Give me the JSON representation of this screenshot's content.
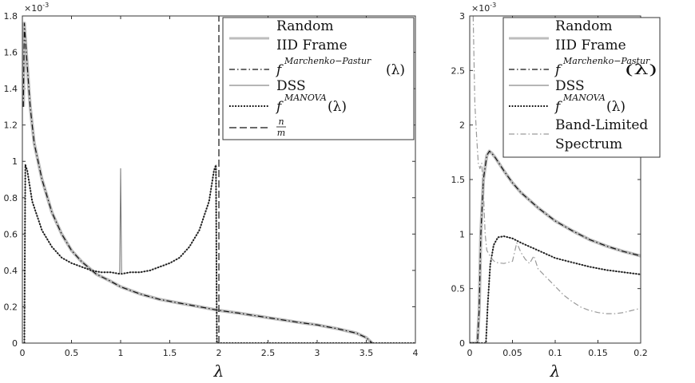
{
  "chart_data": [
    {
      "type": "line",
      "exponent_label": "×10",
      "exponent_power": "-3",
      "xlabel": "λ",
      "xlim": [
        0,
        4
      ],
      "ylim": [
        0,
        1.8
      ],
      "scale": 0.001,
      "xticks": [
        "0",
        "0.5",
        "1",
        "1.5",
        "2",
        "2.5",
        "3",
        "3.5",
        "4"
      ],
      "yticks": [
        "0",
        "0.2",
        "0.4",
        "0.6",
        "0.8",
        "1",
        "1.2",
        "1.4",
        "1.6",
        "1.8"
      ],
      "legend_position": "top-right",
      "legend": {
        "random_line1": "Random",
        "random_line2": "IID Frame",
        "mp_prefix": "f",
        "mp_sup": "Marchenko−Pastur",
        "mp_arg": "(λ)",
        "dss": "DSS",
        "manova_prefix": "f",
        "manova_sup": "MANOVA",
        "manova_arg": "(λ)",
        "ratio_num": "n",
        "ratio_den": "m"
      },
      "series": [
        {
          "name": "Random IID Frame",
          "x": [
            0.01,
            0.02,
            0.04,
            0.08,
            0.12,
            0.2,
            0.3,
            0.4,
            0.5,
            0.6,
            0.75,
            0.9,
            1.0,
            1.2,
            1.4,
            1.6,
            1.8,
            2.0,
            2.2,
            2.5,
            2.8,
            3.0,
            3.2,
            3.4,
            3.5,
            3.56
          ],
          "y": [
            1.3,
            1.76,
            1.6,
            1.3,
            1.1,
            0.9,
            0.72,
            0.6,
            0.51,
            0.45,
            0.38,
            0.34,
            0.31,
            0.27,
            0.24,
            0.22,
            0.2,
            0.18,
            0.165,
            0.14,
            0.115,
            0.1,
            0.08,
            0.055,
            0.03,
            0.0
          ]
        },
        {
          "name": "f^{Marchenko−Pastur}(λ)",
          "x": [
            0.01,
            0.02,
            0.04,
            0.08,
            0.12,
            0.2,
            0.3,
            0.4,
            0.5,
            0.6,
            0.75,
            0.9,
            1.0,
            1.2,
            1.4,
            1.6,
            1.8,
            2.0,
            2.2,
            2.5,
            2.8,
            3.0,
            3.2,
            3.4,
            3.5,
            3.56
          ],
          "y": [
            1.3,
            1.76,
            1.6,
            1.3,
            1.1,
            0.9,
            0.72,
            0.6,
            0.51,
            0.45,
            0.38,
            0.34,
            0.31,
            0.27,
            0.24,
            0.22,
            0.2,
            0.18,
            0.165,
            0.14,
            0.115,
            0.1,
            0.08,
            0.055,
            0.03,
            0.0
          ]
        },
        {
          "name": "DSS",
          "x": [
            0.02,
            0.03,
            0.05,
            0.1,
            0.2,
            0.3,
            0.4,
            0.5,
            0.6,
            0.7,
            0.8,
            0.9,
            0.99,
            1.0,
            1.01,
            1.1,
            1.2,
            1.3,
            1.4,
            1.5,
            1.6,
            1.7,
            1.8,
            1.9,
            1.95,
            1.97,
            1.98
          ],
          "y": [
            0.0,
            0.98,
            0.95,
            0.78,
            0.62,
            0.53,
            0.47,
            0.44,
            0.42,
            0.4,
            0.39,
            0.39,
            0.38,
            0.96,
            0.38,
            0.39,
            0.39,
            0.4,
            0.42,
            0.44,
            0.47,
            0.53,
            0.62,
            0.78,
            0.95,
            0.98,
            0.0
          ]
        },
        {
          "name": "f^{MANOVA}(λ)",
          "x": [
            0.02,
            0.03,
            0.05,
            0.1,
            0.2,
            0.3,
            0.4,
            0.5,
            0.6,
            0.7,
            0.8,
            0.9,
            1.0,
            1.1,
            1.2,
            1.3,
            1.4,
            1.5,
            1.6,
            1.7,
            1.8,
            1.9,
            1.95,
            1.97,
            1.98,
            2.0,
            4.0
          ],
          "y": [
            0.0,
            0.98,
            0.95,
            0.78,
            0.62,
            0.53,
            0.47,
            0.44,
            0.42,
            0.4,
            0.39,
            0.39,
            0.38,
            0.39,
            0.39,
            0.4,
            0.42,
            0.44,
            0.47,
            0.53,
            0.62,
            0.78,
            0.95,
            0.98,
            0.0,
            0.0,
            0.0
          ]
        },
        {
          "name": "n/m",
          "x": [
            2.0,
            2.0
          ],
          "y": [
            0.0,
            1.8
          ]
        }
      ]
    },
    {
      "type": "line",
      "exponent_label": "×10",
      "exponent_power": "-3",
      "xlabel": "λ",
      "xlim": [
        0,
        0.2
      ],
      "ylim": [
        0,
        3
      ],
      "xticks": [
        "0",
        "0.05",
        "0.1",
        "0.15",
        "0.2"
      ],
      "yticks": [
        "0",
        "0.5",
        "1",
        "1.5",
        "2",
        "2.5",
        "3"
      ],
      "legend_position": "top-right",
      "legend": {
        "random_line1": "Random",
        "random_line2": "IID Frame",
        "mp_prefix": "f",
        "mp_sup": "Marchenko−Pastur",
        "mp_arg": "(λ)",
        "dss": "DSS",
        "manova_prefix": "f",
        "manova_sup": "MANOVA",
        "manova_arg": "(λ)",
        "band_line1": "Band-Limited",
        "band_line2": "Spectrum"
      },
      "series": [
        {
          "name": "Random IID Frame",
          "x": [
            0.0,
            0.009,
            0.011,
            0.013,
            0.016,
            0.02,
            0.023,
            0.026,
            0.03,
            0.04,
            0.05,
            0.06,
            0.08,
            0.1,
            0.12,
            0.14,
            0.16,
            0.18,
            0.2
          ],
          "y": [
            0.0,
            0.0,
            0.3,
            1.0,
            1.5,
            1.72,
            1.76,
            1.74,
            1.7,
            1.58,
            1.47,
            1.38,
            1.24,
            1.12,
            1.03,
            0.95,
            0.89,
            0.84,
            0.8
          ]
        },
        {
          "name": "f^{Marchenko−Pastur}(λ)",
          "x": [
            0.0,
            0.009,
            0.011,
            0.013,
            0.016,
            0.02,
            0.023,
            0.026,
            0.03,
            0.04,
            0.05,
            0.06,
            0.08,
            0.1,
            0.12,
            0.14,
            0.16,
            0.18,
            0.2
          ],
          "y": [
            0.0,
            0.0,
            0.3,
            1.0,
            1.5,
            1.72,
            1.76,
            1.74,
            1.7,
            1.58,
            1.47,
            1.38,
            1.24,
            1.12,
            1.03,
            0.95,
            0.89,
            0.84,
            0.8
          ]
        },
        {
          "name": "DSS",
          "x": [
            0.0,
            0.019,
            0.021,
            0.024,
            0.028,
            0.033,
            0.04,
            0.05,
            0.06,
            0.08,
            0.1,
            0.12,
            0.14,
            0.16,
            0.18,
            0.2
          ],
          "y": [
            0.0,
            0.0,
            0.35,
            0.72,
            0.9,
            0.97,
            0.98,
            0.96,
            0.92,
            0.85,
            0.78,
            0.74,
            0.7,
            0.67,
            0.65,
            0.63
          ]
        },
        {
          "name": "f^{MANOVA}(λ)",
          "x": [
            0.0,
            0.019,
            0.021,
            0.024,
            0.028,
            0.033,
            0.04,
            0.05,
            0.06,
            0.08,
            0.1,
            0.12,
            0.14,
            0.16,
            0.18,
            0.2
          ],
          "y": [
            0.0,
            0.0,
            0.35,
            0.72,
            0.9,
            0.97,
            0.98,
            0.96,
            0.92,
            0.85,
            0.78,
            0.74,
            0.7,
            0.67,
            0.65,
            0.63
          ]
        },
        {
          "name": "Band-Limited Spectrum",
          "x": [
            0.004,
            0.006,
            0.008,
            0.01,
            0.012,
            0.014,
            0.016,
            0.018,
            0.02,
            0.025,
            0.03,
            0.04,
            0.05,
            0.055,
            0.06,
            0.065,
            0.07,
            0.075,
            0.08,
            0.09,
            0.1,
            0.11,
            0.12,
            0.13,
            0.14,
            0.15,
            0.16,
            0.17,
            0.18,
            0.19,
            0.2
          ],
          "y": [
            3.0,
            2.2,
            1.9,
            1.65,
            1.6,
            1.65,
            1.4,
            1.0,
            0.85,
            0.78,
            0.74,
            0.73,
            0.75,
            0.92,
            0.83,
            0.77,
            0.73,
            0.8,
            0.68,
            0.6,
            0.52,
            0.44,
            0.38,
            0.33,
            0.3,
            0.28,
            0.27,
            0.27,
            0.28,
            0.3,
            0.32
          ]
        }
      ]
    }
  ]
}
